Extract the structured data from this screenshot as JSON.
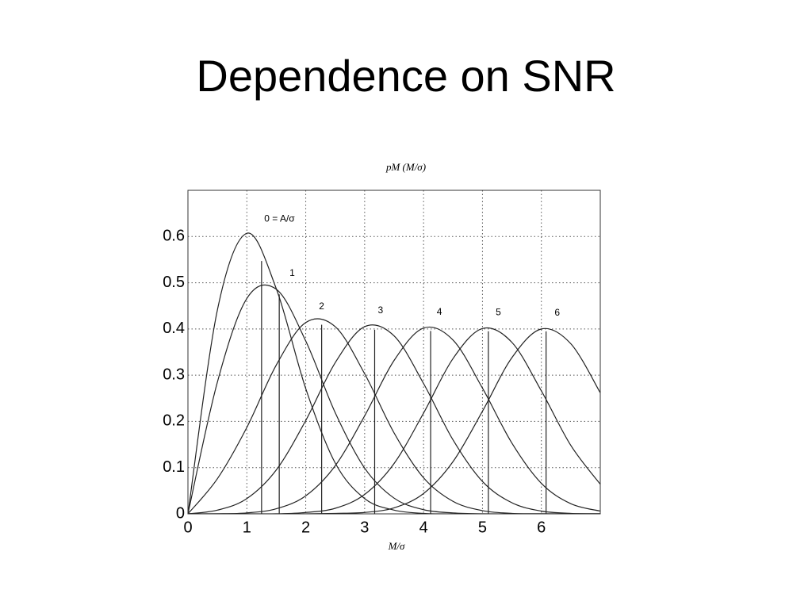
{
  "title": "Dependence on SNR",
  "chart_data": {
    "type": "line",
    "title": "pM (M/σ)",
    "x_label": "M/σ",
    "x": [
      0,
      0.5,
      1,
      1.5,
      2,
      2.5,
      3,
      3.5,
      4,
      4.5,
      5,
      5.5,
      6,
      6.5,
      7
    ],
    "series": [
      {
        "name": "0 = A/σ",
        "color": "#222",
        "mean": 1.25,
        "values": [
          0,
          0.441,
          0.607,
          0.487,
          0.271,
          0.11,
          0.033,
          0.008,
          0.001,
          0,
          0,
          0,
          0,
          0,
          0
        ]
      },
      {
        "name": "1",
        "color": "#222",
        "mean": 1.55,
        "values": [
          0,
          0.285,
          0.466,
          0.486,
          0.374,
          0.219,
          0.099,
          0.034,
          0.009,
          0.002,
          0,
          0,
          0,
          0,
          0
        ]
      },
      {
        "name": "2",
        "color": "#222",
        "mean": 2.27,
        "values": [
          0,
          0.076,
          0.187,
          0.322,
          0.414,
          0.405,
          0.303,
          0.175,
          0.078,
          0.027,
          0.007,
          0.001,
          0,
          0,
          0
        ]
      },
      {
        "name": "3",
        "color": "#222",
        "mean": 3.17,
        "values": [
          0,
          0.008,
          0.033,
          0.095,
          0.202,
          0.327,
          0.405,
          0.385,
          0.282,
          0.16,
          0.07,
          0.024,
          0.006,
          0.001,
          0
        ]
      },
      {
        "name": "4",
        "color": "#222",
        "mean": 4.12,
        "values": [
          0,
          0,
          0.002,
          0.011,
          0.039,
          0.104,
          0.212,
          0.332,
          0.402,
          0.376,
          0.272,
          0.153,
          0.066,
          0.022,
          0.006
        ]
      },
      {
        "name": "5",
        "color": "#222",
        "mean": 5.1,
        "values": [
          0,
          0,
          0,
          0,
          0.003,
          0.012,
          0.042,
          0.109,
          0.218,
          0.336,
          0.401,
          0.371,
          0.266,
          0.148,
          0.064
        ]
      },
      {
        "name": "6",
        "color": "#222",
        "mean": 6.08,
        "values": [
          0,
          0,
          0,
          0,
          0,
          0.001,
          0.003,
          0.013,
          0.044,
          0.113,
          0.222,
          0.338,
          0.4,
          0.368,
          0.262
        ]
      }
    ],
    "xlim": [
      0,
      7
    ],
    "xticks": [
      0,
      1,
      2,
      3,
      4,
      5,
      6
    ],
    "ylim": [
      0,
      0.7
    ],
    "yticks": [
      0,
      0.1,
      0.2,
      0.3,
      0.4,
      0.5,
      0.6
    ],
    "grid": true
  }
}
